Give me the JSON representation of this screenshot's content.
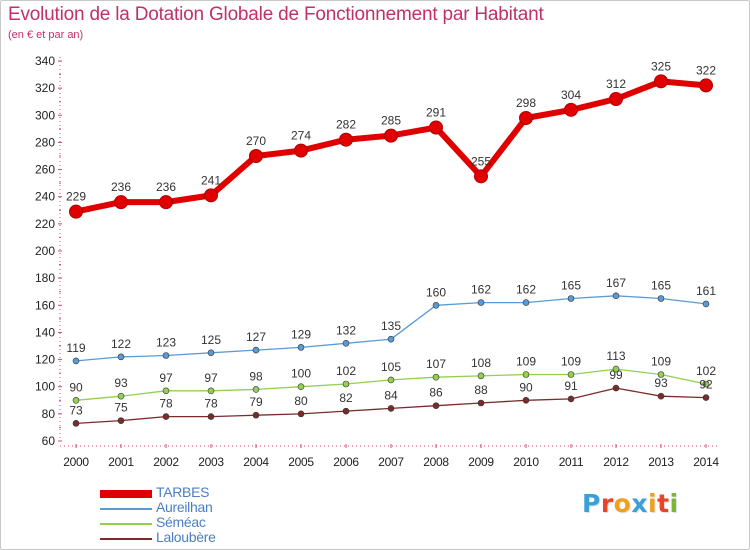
{
  "header": {
    "title": "Evolution de la Dotation Globale de Fonctionnement par Habitant",
    "subtitle": "(en € et par an)"
  },
  "logo": {
    "text": "Proxiti",
    "letter_colors": [
      "#3aa0d8",
      "#e8442c",
      "#f0a020",
      "#3aa0d8",
      "#f0a020",
      "#e8442c",
      "#78b832"
    ]
  },
  "chart_data": {
    "type": "line",
    "x": [
      2000,
      2001,
      2002,
      2003,
      2004,
      2005,
      2006,
      2007,
      2008,
      2009,
      2010,
      2011,
      2012,
      2013,
      2014
    ],
    "ylim": [
      60,
      340
    ],
    "yticks": [
      60,
      80,
      100,
      120,
      140,
      160,
      180,
      200,
      220,
      240,
      260,
      280,
      300,
      320,
      340
    ],
    "grid": false,
    "legend_position": "bottom-left",
    "series": [
      {
        "name": "TARBES",
        "color": "#e00000",
        "values": [
          229,
          236,
          236,
          241,
          270,
          274,
          282,
          285,
          291,
          255,
          298,
          304,
          312,
          325,
          322
        ]
      },
      {
        "name": "Aureilhan",
        "color": "#5b9bd5",
        "values": [
          119,
          122,
          123,
          125,
          127,
          129,
          132,
          135,
          160,
          162,
          162,
          165,
          167,
          165,
          161
        ]
      },
      {
        "name": "Séméac",
        "color": "#92d050",
        "values": [
          90,
          93,
          97,
          97,
          98,
          100,
          102,
          105,
          107,
          108,
          109,
          109,
          113,
          109,
          102
        ]
      },
      {
        "name": "Laloubère",
        "color": "#7b2b2b",
        "values": [
          73,
          75,
          78,
          78,
          79,
          80,
          82,
          84,
          86,
          88,
          90,
          91,
          99,
          93,
          92
        ]
      }
    ]
  }
}
